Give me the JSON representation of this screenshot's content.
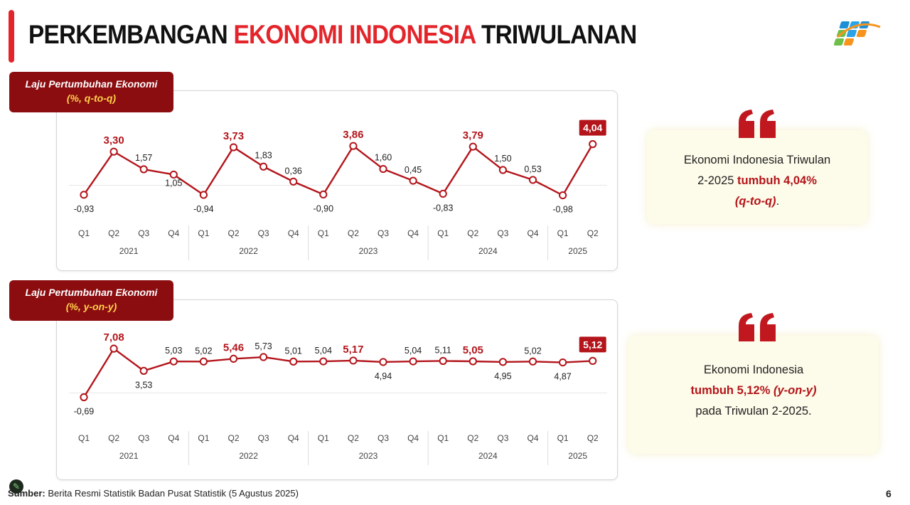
{
  "header": {
    "title_part1": "PERKEMBANGAN ",
    "title_part2": "EKONOMI INDONESIA",
    "title_part3": " TRIWULANAN",
    "accent_color": "#e3252b",
    "logo": "bps-logo"
  },
  "charts": {
    "qtq_badge": {
      "line1": "Laju Pertumbuhan Ekonomi",
      "line2": "(%, q-to-q)"
    },
    "yoy_badge": {
      "line1": "Laju Pertumbuhan Ekonomi",
      "line2": "(%, y-on-y)"
    }
  },
  "chart_data": [
    {
      "type": "line",
      "title": "Laju Pertumbuhan Ekonomi (%, q-to-q)",
      "categories": [
        "Q1",
        "Q2",
        "Q3",
        "Q4",
        "Q1",
        "Q2",
        "Q3",
        "Q4",
        "Q1",
        "Q2",
        "Q3",
        "Q4",
        "Q1",
        "Q2",
        "Q3",
        "Q4",
        "Q1",
        "Q2"
      ],
      "years": [
        "2021",
        "2022",
        "2023",
        "2024",
        "2025"
      ],
      "value_labels": [
        "-0,93",
        "3,30",
        "1,57",
        "1,05",
        "-0,94",
        "3,73",
        "1,83",
        "0,36",
        "-0,90",
        "3,86",
        "1,60",
        "0,45",
        "-0,83",
        "3,79",
        "1,50",
        "0,53",
        "-0,98",
        "4,04"
      ],
      "values": [
        -0.93,
        3.3,
        1.57,
        1.05,
        -0.94,
        3.73,
        1.83,
        0.36,
        -0.9,
        3.86,
        1.6,
        0.45,
        -0.83,
        3.79,
        1.5,
        0.53,
        -0.98,
        4.04
      ],
      "highlighted": [
        1,
        5,
        9,
        13
      ],
      "boxed": [
        17
      ],
      "ylim": [
        -1.5,
        5.2
      ],
      "line_color": "#b3151b",
      "xlabel": "",
      "ylabel": ""
    },
    {
      "type": "line",
      "title": "Laju Pertumbuhan Ekonomi (%, y-on-y)",
      "categories": [
        "Q1",
        "Q2",
        "Q3",
        "Q4",
        "Q1",
        "Q2",
        "Q3",
        "Q4",
        "Q1",
        "Q2",
        "Q3",
        "Q4",
        "Q1",
        "Q2",
        "Q3",
        "Q4",
        "Q1",
        "Q2"
      ],
      "years": [
        "2021",
        "2022",
        "2023",
        "2024",
        "2025"
      ],
      "value_labels": [
        "-0,69",
        "7,08",
        "3,53",
        "5,03",
        "5,02",
        "5,46",
        "5,73",
        "5,01",
        "5,04",
        "5,17",
        "4,94",
        "5,04",
        "5,11",
        "5,05",
        "4,95",
        "5,02",
        "4,87",
        "5,12"
      ],
      "values": [
        -0.69,
        7.08,
        3.53,
        5.03,
        5.02,
        5.46,
        5.73,
        5.01,
        5.04,
        5.17,
        4.94,
        5.04,
        5.11,
        5.05,
        4.95,
        5.02,
        4.87,
        5.12
      ],
      "highlighted": [
        1,
        5,
        9,
        13
      ],
      "boxed": [
        17
      ],
      "ylim": [
        -2.0,
        9.6
      ],
      "line_color": "#b3151b",
      "xlabel": "",
      "ylabel": ""
    }
  ],
  "quotes": {
    "top": {
      "line1": "Ekonomi Indonesia Triwulan",
      "line2a": "2-2025 ",
      "line2b": "tumbuh 4,04%",
      "line3a": "(q-to-q)",
      "line3b": "."
    },
    "bottom": {
      "line1": "Ekonomi Indonesia",
      "line2a": "tumbuh 5,12% ",
      "line2b": "(y-on-y)",
      "line3": "pada Triwulan 2-2025."
    }
  },
  "footer": {
    "source_label": "Sumber:",
    "source_text": " Berita Resmi Statistik Badan Pusat Statistik (5 Agustus 2025)",
    "page_number": "6"
  }
}
